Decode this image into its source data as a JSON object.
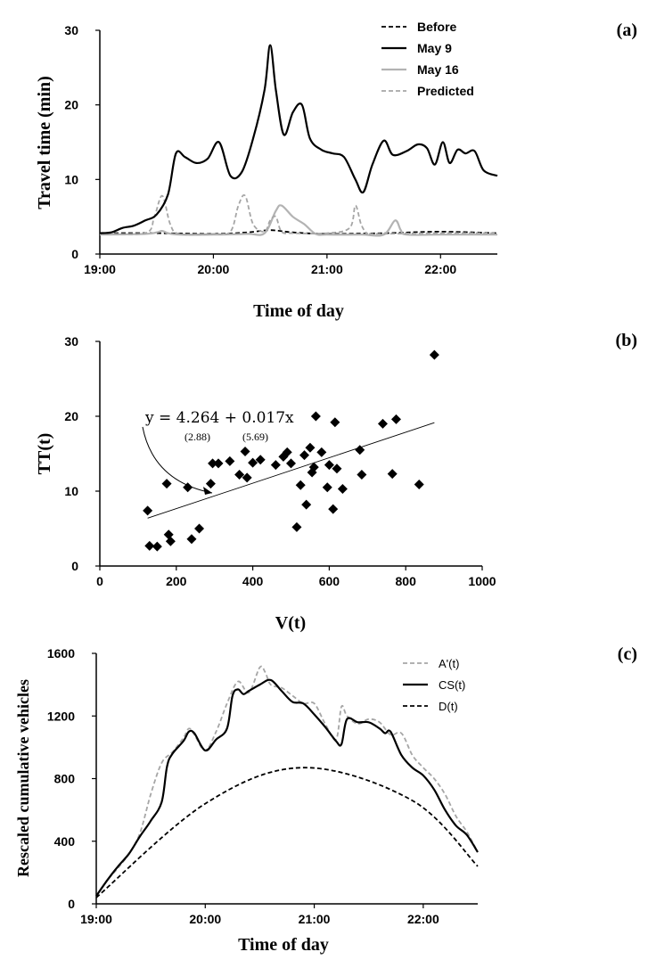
{
  "chart_data": [
    {
      "id": "a",
      "panel_label": "(a)",
      "type": "line",
      "xlabel": "Time of day",
      "ylabel": "Travel time (min)",
      "xlim": [
        19.0,
        22.5
      ],
      "ylim": [
        0,
        30
      ],
      "xticks": [
        19,
        20,
        21,
        22
      ],
      "xtick_labels": [
        "19:00",
        "20:00",
        "21:00",
        "22:00"
      ],
      "yticks": [
        0,
        10,
        20,
        30
      ],
      "grid": false,
      "legend_position": "top-right",
      "series": [
        {
          "name": "Before",
          "color": "#000000",
          "dash": "dashed",
          "x": [
            19.0,
            19.5,
            20.0,
            20.3,
            20.5,
            20.7,
            21.0,
            21.5,
            22.0,
            22.5
          ],
          "y": [
            2.8,
            2.8,
            2.7,
            2.9,
            3.2,
            2.9,
            2.7,
            2.8,
            3.0,
            2.8
          ]
        },
        {
          "name": "May 9",
          "color": "#000000",
          "dash": "solid",
          "x": [
            19.0,
            19.1,
            19.2,
            19.3,
            19.4,
            19.5,
            19.6,
            19.67,
            19.75,
            19.85,
            19.95,
            20.05,
            20.15,
            20.25,
            20.35,
            20.45,
            20.5,
            20.55,
            20.62,
            20.7,
            20.78,
            20.85,
            20.95,
            21.05,
            21.15,
            21.25,
            21.32,
            21.4,
            21.5,
            21.58,
            21.7,
            21.8,
            21.88,
            21.95,
            22.02,
            22.08,
            22.15,
            22.22,
            22.3,
            22.38,
            22.5
          ],
          "y": [
            2.8,
            2.9,
            3.5,
            3.8,
            4.5,
            5.3,
            8.0,
            13.5,
            13.0,
            12.2,
            12.8,
            15.0,
            10.5,
            11.0,
            15.5,
            22.0,
            28.0,
            22.0,
            16.0,
            19.0,
            20.0,
            15.5,
            14.0,
            13.5,
            13.0,
            10.0,
            8.3,
            12.0,
            15.2,
            13.3,
            13.8,
            14.7,
            14.2,
            12.0,
            15.0,
            12.2,
            14.0,
            13.5,
            13.8,
            11.2,
            10.5
          ]
        },
        {
          "name": "May 16",
          "color": "#b3b3b3",
          "dash": "solid",
          "x": [
            19.0,
            19.4,
            19.5,
            19.55,
            19.6,
            19.7,
            20.0,
            20.3,
            20.45,
            20.55,
            20.6,
            20.7,
            20.8,
            20.9,
            21.0,
            21.3,
            21.5,
            21.6,
            21.65,
            21.7,
            22.0,
            22.5
          ],
          "y": [
            2.6,
            2.7,
            2.9,
            3.1,
            2.8,
            2.6,
            2.6,
            2.7,
            2.8,
            5.8,
            6.5,
            5.0,
            4.0,
            2.7,
            2.6,
            2.6,
            2.6,
            4.5,
            3.2,
            2.6,
            2.6,
            2.6
          ]
        },
        {
          "name": "Predicted",
          "color": "#a6a6a6",
          "dash": "dashed",
          "x": [
            19.0,
            19.4,
            19.48,
            19.55,
            19.62,
            19.7,
            20.0,
            20.15,
            20.22,
            20.28,
            20.35,
            20.45,
            20.5,
            20.55,
            20.6,
            20.7,
            21.0,
            21.2,
            21.25,
            21.3,
            21.35,
            21.4,
            22.0,
            22.5
          ],
          "y": [
            2.8,
            2.8,
            5.0,
            7.8,
            4.0,
            2.7,
            2.7,
            3.0,
            6.5,
            7.8,
            4.0,
            3.0,
            4.5,
            5.0,
            3.0,
            2.8,
            2.8,
            3.5,
            6.5,
            4.0,
            2.8,
            2.7,
            2.8,
            2.8
          ]
        }
      ]
    },
    {
      "id": "b",
      "panel_label": "(b)",
      "type": "scatter",
      "xlabel": "V(t)",
      "ylabel": "TT(t)",
      "xlim": [
        0,
        1000
      ],
      "ylim": [
        0,
        30
      ],
      "xticks": [
        0,
        200,
        400,
        600,
        800,
        1000
      ],
      "yticks": [
        0,
        10,
        20,
        30
      ],
      "grid": false,
      "marker": "diamond",
      "points": [
        [
          125,
          7.4
        ],
        [
          130,
          2.7
        ],
        [
          150,
          2.6
        ],
        [
          175,
          11.0
        ],
        [
          180,
          4.2
        ],
        [
          185,
          3.3
        ],
        [
          230,
          10.5
        ],
        [
          240,
          3.6
        ],
        [
          260,
          5.0
        ],
        [
          290,
          11.0
        ],
        [
          295,
          13.7
        ],
        [
          310,
          13.7
        ],
        [
          340,
          14.0
        ],
        [
          365,
          12.2
        ],
        [
          380,
          15.3
        ],
        [
          385,
          11.8
        ],
        [
          400,
          13.8
        ],
        [
          420,
          14.2
        ],
        [
          460,
          13.5
        ],
        [
          480,
          14.6
        ],
        [
          490,
          15.2
        ],
        [
          500,
          13.7
        ],
        [
          515,
          5.2
        ],
        [
          525,
          10.8
        ],
        [
          535,
          14.8
        ],
        [
          540,
          8.2
        ],
        [
          550,
          15.8
        ],
        [
          555,
          12.5
        ],
        [
          560,
          13.2
        ],
        [
          565,
          20.0
        ],
        [
          580,
          15.2
        ],
        [
          595,
          10.5
        ],
        [
          600,
          13.5
        ],
        [
          610,
          7.6
        ],
        [
          615,
          19.2
        ],
        [
          620,
          13.0
        ],
        [
          635,
          10.3
        ],
        [
          680,
          15.5
        ],
        [
          685,
          12.2
        ],
        [
          740,
          19.0
        ],
        [
          765,
          12.3
        ],
        [
          775,
          19.6
        ],
        [
          835,
          10.9
        ],
        [
          875,
          28.2
        ]
      ],
      "trendline": {
        "intercept": 4.264,
        "slope": 0.017,
        "x_range": [
          125,
          875
        ]
      },
      "annotation": {
        "equation": "y = 4.264 + 0.017x",
        "intercept_note": "(2.88)",
        "slope_note": "(5.69)"
      }
    },
    {
      "id": "c",
      "panel_label": "(c)",
      "type": "line",
      "xlabel": "Time of day",
      "ylabel": "Rescaled cumulative vehicles",
      "xlim": [
        19.0,
        22.5
      ],
      "ylim": [
        0,
        1600
      ],
      "xticks": [
        19,
        20,
        21,
        22
      ],
      "xtick_labels": [
        "19:00",
        "20:00",
        "21:00",
        "22:00"
      ],
      "yticks": [
        0,
        400,
        800,
        1200,
        1600
      ],
      "grid": false,
      "legend_position": "top-right",
      "series": [
        {
          "name": "A'(t)",
          "color": "#a6a6a6",
          "dash": "dashed",
          "x": [
            19.0,
            19.1,
            19.2,
            19.3,
            19.4,
            19.5,
            19.6,
            19.7,
            19.8,
            19.85,
            19.9,
            20.0,
            20.1,
            20.2,
            20.3,
            20.4,
            20.5,
            20.55,
            20.6,
            20.7,
            20.8,
            20.9,
            21.0,
            21.1,
            21.2,
            21.25,
            21.3,
            21.4,
            21.5,
            21.6,
            21.7,
            21.8,
            21.9,
            22.0,
            22.1,
            22.2,
            22.3,
            22.4,
            22.5
          ],
          "y": [
            50,
            150,
            230,
            320,
            450,
            700,
            900,
            970,
            1060,
            1120,
            1080,
            980,
            1100,
            1280,
            1420,
            1350,
            1510,
            1480,
            1400,
            1380,
            1330,
            1280,
            1280,
            1150,
            1050,
            1260,
            1200,
            1150,
            1180,
            1160,
            1080,
            1090,
            950,
            870,
            800,
            700,
            560,
            460,
            330
          ]
        },
        {
          "name": "CS(t)",
          "color": "#000000",
          "dash": "solid",
          "x": [
            19.0,
            19.1,
            19.2,
            19.3,
            19.4,
            19.5,
            19.6,
            19.65,
            19.7,
            19.8,
            19.85,
            19.9,
            20.0,
            20.1,
            20.2,
            20.25,
            20.3,
            20.35,
            20.4,
            20.5,
            20.6,
            20.7,
            20.8,
            20.9,
            21.0,
            21.1,
            21.2,
            21.25,
            21.3,
            21.4,
            21.5,
            21.6,
            21.65,
            21.7,
            21.8,
            21.9,
            22.0,
            22.1,
            22.2,
            22.3,
            22.4,
            22.5
          ],
          "y": [
            50,
            150,
            240,
            320,
            430,
            530,
            650,
            880,
            960,
            1040,
            1100,
            1090,
            980,
            1050,
            1120,
            1330,
            1370,
            1340,
            1360,
            1400,
            1430,
            1360,
            1290,
            1280,
            1210,
            1130,
            1040,
            1020,
            1180,
            1160,
            1160,
            1120,
            1090,
            1100,
            950,
            870,
            820,
            730,
            600,
            500,
            440,
            330
          ]
        },
        {
          "name": "D(t)",
          "color": "#000000",
          "dash": "dashed",
          "x": [
            19.0,
            20.0,
            20.9,
            21.9,
            22.5
          ],
          "y": [
            40,
            640,
            870,
            660,
            240
          ]
        }
      ]
    }
  ]
}
